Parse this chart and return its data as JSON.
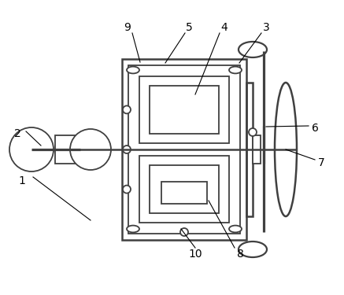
{
  "background": "#ffffff",
  "line_color": "#404040",
  "label_color": "#000000",
  "lw": 1.3,
  "fig_w": 4.37,
  "fig_h": 3.75,
  "dpi": 100
}
